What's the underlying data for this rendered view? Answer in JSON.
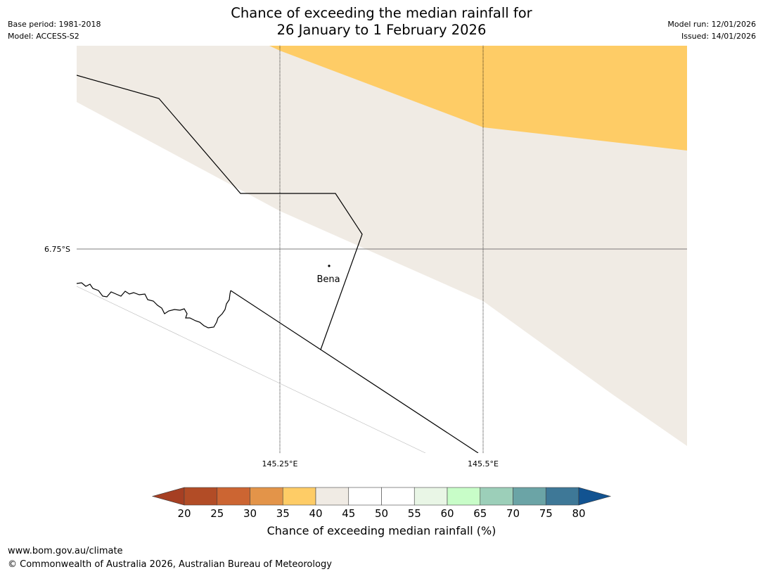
{
  "header": {
    "title_line1": "Chance of exceeding the median rainfall for",
    "title_line2": "26 January to 1 February 2026",
    "base_period": "Base period: 1981-2018",
    "model": "Model: ACCESS-S2",
    "model_run": "Model run: 12/01/2026",
    "issued": "Issued: 14/01/2026"
  },
  "map": {
    "lat_label": "6.75°S",
    "lon_labels": [
      "145.25°E",
      "145.5°E"
    ],
    "place_label": "Bena",
    "colors": {
      "category_35_40": "#fecc66",
      "category_40_45": "#f0ebe4",
      "background": "#ffffff",
      "boundary": "#000000"
    }
  },
  "colorbar": {
    "title": "Chance of exceeding median rainfall (%)",
    "ticks": [
      "20",
      "25",
      "30",
      "35",
      "40",
      "45",
      "50",
      "55",
      "60",
      "65",
      "70",
      "75",
      "80"
    ],
    "colors": [
      "#a63f23",
      "#b24c26",
      "#cc6532",
      "#e39449",
      "#fecc66",
      "#f0ebe4",
      "#ffffff",
      "#ffffff",
      "#e9f6e6",
      "#c8fdc8",
      "#9ccfb9",
      "#6ba4a6",
      "#3e7897",
      "#125391"
    ],
    "under_color": "#a63f23",
    "over_color": "#125391"
  },
  "footer": {
    "url": "www.bom.gov.au/climate",
    "copyright": "© Commonwealth of Australia 2026, Australian Bureau of Meteorology"
  }
}
